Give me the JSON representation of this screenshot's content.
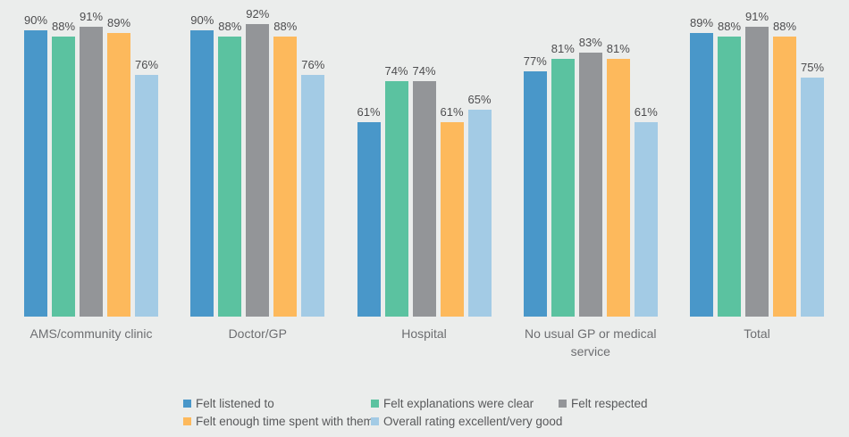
{
  "colors": {
    "background": "#ebedec",
    "value_label": "#4d4d4f",
    "category_label": "#6d6e71",
    "legend_label": "#58595b"
  },
  "chart_data": {
    "type": "bar",
    "title": "",
    "value_suffix": "%",
    "ylim": [
      0,
      100
    ],
    "grid": false,
    "axis_lines": false,
    "legend_position": "bottom",
    "categories": [
      "AMS/community clinic",
      "Doctor/GP",
      "Hospital",
      "No usual GP or medical service",
      "Total"
    ],
    "series": [
      {
        "name": "Felt listened to",
        "color": "#4997c9",
        "values": [
          90,
          90,
          61,
          77,
          89
        ]
      },
      {
        "name": "Felt explanations were clear",
        "color": "#5bc2a0",
        "values": [
          88,
          88,
          74,
          81,
          88
        ]
      },
      {
        "name": "Felt respected",
        "color": "#939598",
        "values": [
          91,
          92,
          74,
          83,
          91
        ]
      },
      {
        "name": "Felt enough time spent with them",
        "color": "#fdb95c",
        "values": [
          89,
          88,
          61,
          81,
          88
        ]
      },
      {
        "name": "Overall rating excellent/very good",
        "color": "#a3cbe5",
        "values": [
          76,
          76,
          65,
          61,
          75
        ]
      }
    ]
  }
}
